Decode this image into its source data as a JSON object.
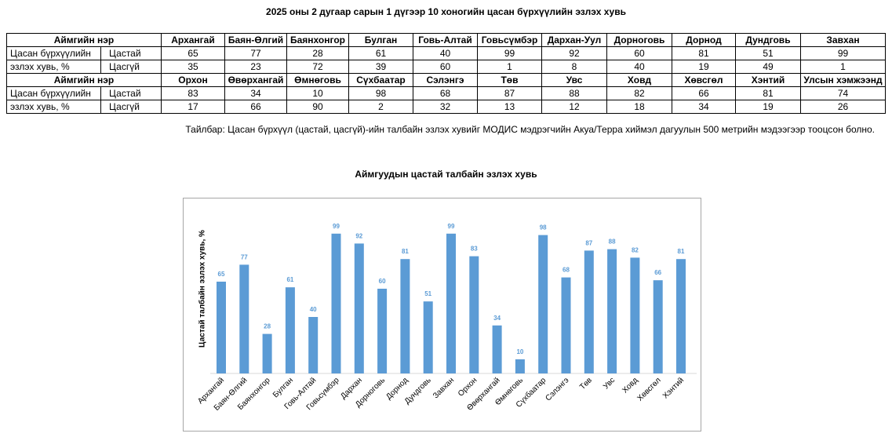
{
  "title": "2025 оны 2 дугаар сарын 1 дүгээр 10 хоногийн цасан бүрхүүлийн эзлэх хувь",
  "table": {
    "header_label": "Аймгийн нэр",
    "row_label_line1": "Цасан бүрхүүлийн",
    "row_label_line2": "эзлэх хувь, %",
    "snow_label": "Цастай",
    "nosnow_label": "Цасгүй",
    "block1": {
      "names": [
        "Архангай",
        "Баян-Өлгий",
        "Баянхонгор",
        "Булган",
        "Говь-Алтай",
        "Говьсүмбэр",
        "Дархан-Уул",
        "Дорноговь",
        "Дорнод",
        "Дундговь",
        "Завхан"
      ],
      "snow": [
        65,
        77,
        28,
        61,
        40,
        99,
        92,
        60,
        81,
        51,
        99
      ],
      "nosnow": [
        35,
        23,
        72,
        39,
        60,
        1,
        8,
        40,
        19,
        49,
        1
      ]
    },
    "block2": {
      "names": [
        "Орхон",
        "Өвөрхангай",
        "Өмнөговь",
        "Сүхбаатар",
        "Сэлэнгэ",
        "Төв",
        "Увс",
        "Ховд",
        "Хөвсгөл",
        "Хэнтий",
        "Улсын хэмжээнд"
      ],
      "snow": [
        83,
        34,
        10,
        98,
        68,
        87,
        88,
        82,
        66,
        81,
        74
      ],
      "nosnow": [
        17,
        66,
        90,
        2,
        32,
        13,
        12,
        18,
        34,
        19,
        26
      ]
    }
  },
  "note": "Тайлбар: Цасан бүрхүүл (цастай, цасгүй)-ийн талбайн эзлэх хувийг МОДИС мэдрэгчийн Акуа/Терра хиймэл дагуулын 500 метрийн мэдээгээр тооцсон болно.",
  "chart_title": "Аймгуудын цастай талбайн эзлэх хувь",
  "chart_data": {
    "type": "bar",
    "title": "Аймгуудын цастай талбайн эзлэх хувь",
    "xlabel": "",
    "ylabel": "Цастай талбайн эзлэх хувь, %",
    "ylim": [
      0,
      100
    ],
    "grid": false,
    "categories": [
      "Архангай",
      "Баян-Өлгий",
      "Баянхонгор",
      "Булган",
      "Говь-Алтай",
      "Говьсүмбэр",
      "Дархан",
      "Дорноговь",
      "Дорнод",
      "Дундговь",
      "Завхан",
      "Орхон",
      "Өвөрхангай",
      "Өмнөговь",
      "Сүхбаатар",
      "Сэлэнгэ",
      "Төв",
      "Увс",
      "Ховд",
      "Хөвсгөл",
      "Хэнтий"
    ],
    "values": [
      65,
      77,
      28,
      61,
      40,
      99,
      92,
      60,
      81,
      51,
      99,
      83,
      34,
      10,
      98,
      68,
      87,
      88,
      82,
      66,
      81
    ],
    "bar_color": "#5b9bd5",
    "label_color": "#5b9bd5"
  }
}
